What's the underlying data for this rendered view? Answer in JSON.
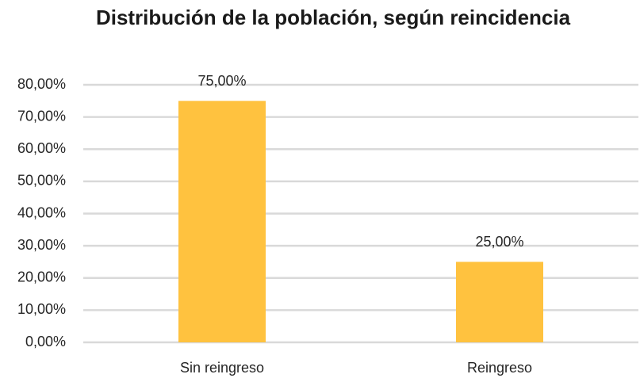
{
  "chart_data": {
    "type": "bar",
    "title": "Distribución de la población, según reincidencia",
    "categories": [
      "Sin reingreso",
      "Reingreso"
    ],
    "values": [
      75,
      25
    ],
    "value_labels": [
      "75,00%",
      "25,00%"
    ],
    "color": "#ffc23f",
    "ylim": [
      0,
      80
    ],
    "yticks": [
      {
        "value": 0,
        "label": "0,00%"
      },
      {
        "value": 10,
        "label": "10,00%"
      },
      {
        "value": 20,
        "label": "20,00%"
      },
      {
        "value": 30,
        "label": "30,00%"
      },
      {
        "value": 40,
        "label": "40,00%"
      },
      {
        "value": 50,
        "label": "50,00%"
      },
      {
        "value": 60,
        "label": "60,00%"
      },
      {
        "value": 70,
        "label": "70,00%"
      },
      {
        "value": 80,
        "label": "80,00%"
      }
    ],
    "grid": true
  }
}
